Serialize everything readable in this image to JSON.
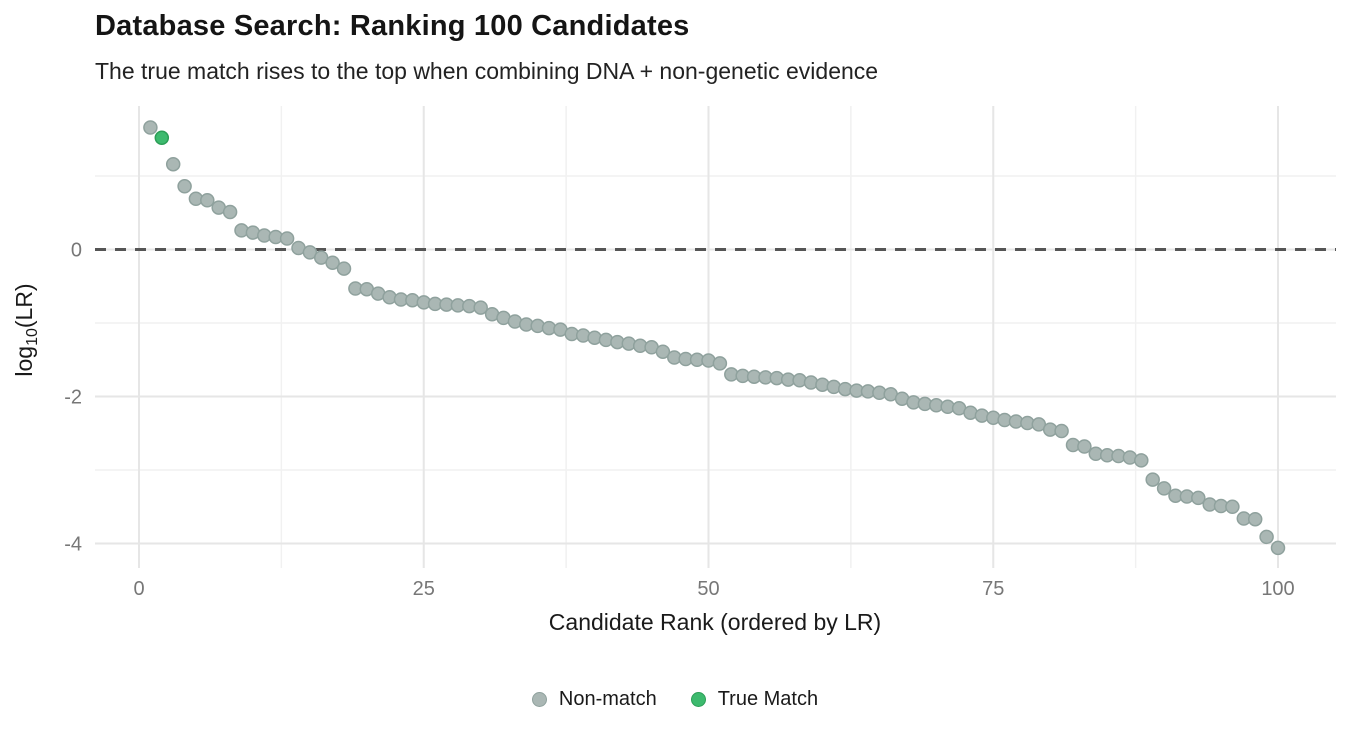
{
  "title": "Database Search: Ranking 100 Candidates",
  "subtitle": "The true match rises to the top when combining DNA + non-genetic evidence",
  "axes": {
    "x_label": "Candidate Rank (ordered by LR)",
    "y_label_prefix": "log",
    "y_label_sub": "10",
    "y_label_suffix": "(LR)"
  },
  "legend": [
    {
      "label": "Non-match",
      "color": "#aab7b4",
      "stroke": "#8fa19d"
    },
    {
      "label": "True Match",
      "color": "#3dba6e",
      "stroke": "#2c9e57"
    }
  ],
  "chart_data": {
    "type": "scatter",
    "title": "Database Search: Ranking 100 Candidates",
    "subtitle": "The true match rises to the top when combining DNA + non-genetic evidence",
    "xlabel": "Candidate Rank (ordered by LR)",
    "ylabel": "log10(LR)",
    "x_ticks": [
      0,
      25,
      50,
      75,
      100
    ],
    "y_ticks": [
      0,
      -2,
      -4
    ],
    "y_minor_gridlines": [
      1,
      -1,
      -3
    ],
    "x_minor_gridlines": [
      12.5,
      37.5,
      62.5,
      87.5
    ],
    "xlim": [
      -4,
      105
    ],
    "ylim": [
      -4.35,
      1.95
    ],
    "grid": true,
    "legend_position": "bottom",
    "reference_line_y": 0,
    "reference_line_style": "dashed",
    "true_match_rank": 2,
    "series_names": [
      "Non-match",
      "True Match"
    ],
    "ranks": [
      1,
      2,
      3,
      4,
      5,
      6,
      7,
      8,
      9,
      10,
      11,
      12,
      13,
      14,
      15,
      16,
      17,
      18,
      19,
      20,
      21,
      22,
      23,
      24,
      25,
      26,
      27,
      28,
      29,
      30,
      31,
      32,
      33,
      34,
      35,
      36,
      37,
      38,
      39,
      40,
      41,
      42,
      43,
      44,
      45,
      46,
      47,
      48,
      49,
      50,
      51,
      52,
      53,
      54,
      55,
      56,
      57,
      58,
      59,
      60,
      61,
      62,
      63,
      64,
      65,
      66,
      67,
      68,
      69,
      70,
      71,
      72,
      73,
      74,
      75,
      76,
      77,
      78,
      79,
      80,
      81,
      82,
      83,
      84,
      85,
      86,
      87,
      88,
      89,
      90,
      91,
      92,
      93,
      94,
      95,
      96,
      97,
      98,
      99,
      100
    ],
    "log10_lr": [
      1.66,
      1.52,
      1.16,
      0.86,
      0.69,
      0.67,
      0.57,
      0.51,
      0.26,
      0.23,
      0.19,
      0.17,
      0.15,
      0.02,
      -0.04,
      -0.11,
      -0.18,
      -0.26,
      -0.53,
      -0.54,
      -0.6,
      -0.65,
      -0.68,
      -0.69,
      -0.72,
      -0.74,
      -0.75,
      -0.76,
      -0.77,
      -0.79,
      -0.88,
      -0.93,
      -0.98,
      -1.02,
      -1.04,
      -1.07,
      -1.09,
      -1.15,
      -1.17,
      -1.2,
      -1.23,
      -1.26,
      -1.28,
      -1.31,
      -1.33,
      -1.39,
      -1.47,
      -1.49,
      -1.5,
      -1.51,
      -1.55,
      -1.7,
      -1.72,
      -1.73,
      -1.74,
      -1.75,
      -1.77,
      -1.78,
      -1.81,
      -1.84,
      -1.87,
      -1.9,
      -1.92,
      -1.93,
      -1.95,
      -1.97,
      -2.03,
      -2.08,
      -2.1,
      -2.12,
      -2.14,
      -2.16,
      -2.22,
      -2.26,
      -2.29,
      -2.32,
      -2.34,
      -2.36,
      -2.38,
      -2.45,
      -2.47,
      -2.66,
      -2.68,
      -2.78,
      -2.8,
      -2.81,
      -2.83,
      -2.87,
      -3.13,
      -3.25,
      -3.35,
      -3.36,
      -3.38,
      -3.47,
      -3.49,
      -3.5,
      -3.66,
      -3.67,
      -3.91,
      -4.06
    ],
    "colors": {
      "non_match_fill": "#aab7b4",
      "non_match_stroke": "#8fa19d",
      "true_match_fill": "#3dba6e",
      "true_match_stroke": "#2c9e57",
      "reference_line": "#555555",
      "grid_major": "#e6e6e6",
      "grid_minor": "#f1f1f1",
      "tick_label": "#777777",
      "axis_title": "#1a1a1a"
    }
  }
}
